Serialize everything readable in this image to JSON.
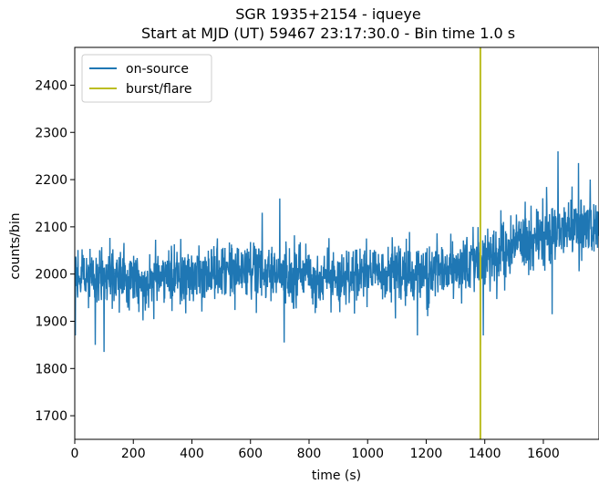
{
  "chart_data": {
    "type": "line",
    "title": "SGR 1935+2154 - iqueye",
    "subtitle": "Start at MJD (UT) 59467 23:17:30.0 - Bin time 1.0 s",
    "xlabel": "time (s)",
    "ylabel": "counts/bin",
    "xlim": [
      0,
      1790
    ],
    "ylim": [
      1650,
      2480
    ],
    "xticks": [
      0,
      200,
      400,
      600,
      800,
      1000,
      1200,
      1400,
      1600
    ],
    "yticks": [
      1700,
      1800,
      1900,
      2000,
      2100,
      2200,
      2300,
      2400
    ],
    "grid": false,
    "legend_position": "top-left",
    "bin_time_s": 1.0,
    "series": [
      {
        "name": "on-source",
        "color": "#1f77b4",
        "trend": {
          "x": [
            0,
            200,
            400,
            600,
            800,
            1000,
            1200,
            1400,
            1600,
            1790
          ],
          "y": [
            1990,
            1990,
            2000,
            2010,
            1985,
            1995,
            2000,
            2030,
            2080,
            2105
          ]
        },
        "scatter": 45,
        "notable_points": {
          "x": [
            2,
            70,
            100,
            640,
            700,
            715,
            1170,
            1360,
            1385,
            1395,
            1630,
            1650,
            1720,
            1760
          ],
          "y": [
            1870,
            1850,
            1835,
            2130,
            2160,
            1855,
            1870,
            2100,
            1850,
            1870,
            1915,
            2260,
            2235,
            2200
          ]
        }
      }
    ],
    "vertical_lines": [
      {
        "name": "burst/flare",
        "x": 1385,
        "color": "#bcbd22"
      }
    ]
  }
}
